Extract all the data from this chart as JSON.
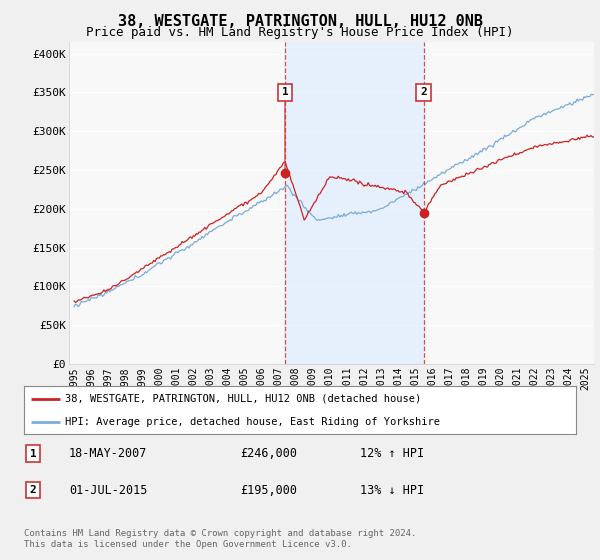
{
  "title": "38, WESTGATE, PATRINGTON, HULL, HU12 0NB",
  "subtitle": "Price paid vs. HM Land Registry's House Price Index (HPI)",
  "ylabel_ticks": [
    "£0",
    "£50K",
    "£100K",
    "£150K",
    "£200K",
    "£250K",
    "£300K",
    "£350K",
    "£400K"
  ],
  "ytick_values": [
    0,
    50000,
    100000,
    150000,
    200000,
    250000,
    300000,
    350000,
    400000
  ],
  "ylim": [
    0,
    415000
  ],
  "xlim_start": 1994.7,
  "xlim_end": 2025.5,
  "background_color": "#f0f0f0",
  "plot_bg_color": "#f8f8f8",
  "grid_color": "#ffffff",
  "hpi_color": "#7aacdc",
  "price_color": "#cc2222",
  "vline_color": "#cc3333",
  "shade_color": "#ddeeff",
  "marker1_date": 2007.37,
  "marker1_price": 246000,
  "marker1_label": "1",
  "marker2_date": 2015.5,
  "marker2_price": 195000,
  "marker2_label": "2",
  "legend_line1": "38, WESTGATE, PATRINGTON, HULL, HU12 0NB (detached house)",
  "legend_line2": "HPI: Average price, detached house, East Riding of Yorkshire",
  "table_row1_num": "1",
  "table_row1_date": "18-MAY-2007",
  "table_row1_price": "£246,000",
  "table_row1_hpi": "12% ↑ HPI",
  "table_row2_num": "2",
  "table_row2_date": "01-JUL-2015",
  "table_row2_price": "£195,000",
  "table_row2_hpi": "13% ↓ HPI",
  "footer": "Contains HM Land Registry data © Crown copyright and database right 2024.\nThis data is licensed under the Open Government Licence v3.0.",
  "title_fontsize": 11,
  "subtitle_fontsize": 9,
  "tick_fontsize": 8,
  "xticks": [
    1995,
    1996,
    1997,
    1998,
    1999,
    2000,
    2001,
    2002,
    2003,
    2004,
    2005,
    2006,
    2007,
    2008,
    2009,
    2010,
    2011,
    2012,
    2013,
    2014,
    2015,
    2016,
    2017,
    2018,
    2019,
    2020,
    2021,
    2022,
    2023,
    2024,
    2025
  ]
}
